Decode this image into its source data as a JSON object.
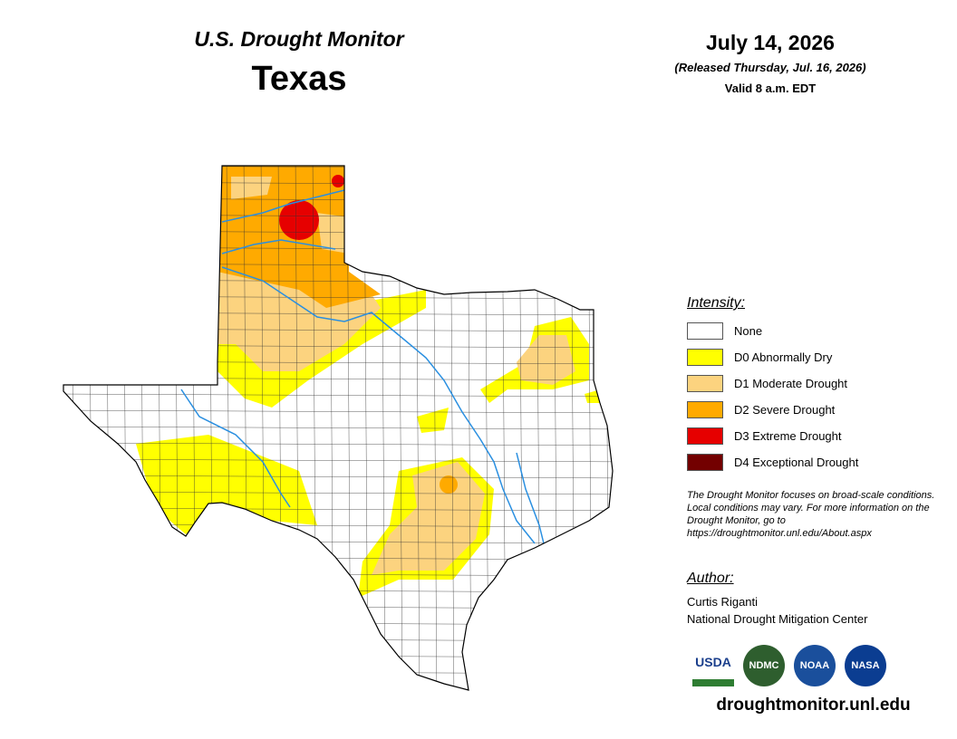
{
  "header": {
    "title": "U.S. Drought Monitor",
    "state": "Texas",
    "date": "July 14, 2026",
    "released": "(Released Thursday, Jul. 16, 2026)",
    "valid": "Valid 8 a.m. EDT"
  },
  "legend": {
    "title": "Intensity:",
    "items": [
      {
        "label": "None",
        "color": "#ffffff"
      },
      {
        "label": "D0 Abnormally Dry",
        "color": "#ffff00"
      },
      {
        "label": "D1 Moderate Drought",
        "color": "#fcd37f"
      },
      {
        "label": "D2 Severe Drought",
        "color": "#ffaa00"
      },
      {
        "label": "D3 Extreme Drought",
        "color": "#e60000"
      },
      {
        "label": "D4 Exceptional Drought",
        "color": "#730000"
      }
    ]
  },
  "note": "The Drought Monitor focuses on broad-scale conditions. Local conditions may vary. For more information on the Drought Monitor, go to https://droughtmonitor.unl.edu/About.aspx",
  "author": {
    "heading": "Author:",
    "name": "Curtis Riganti",
    "org": "National Drought Mitigation Center"
  },
  "logos": [
    "USDA",
    "NDMC",
    "NOAA",
    "NASA"
  ],
  "url": "droughtmonitor.unl.edu"
}
